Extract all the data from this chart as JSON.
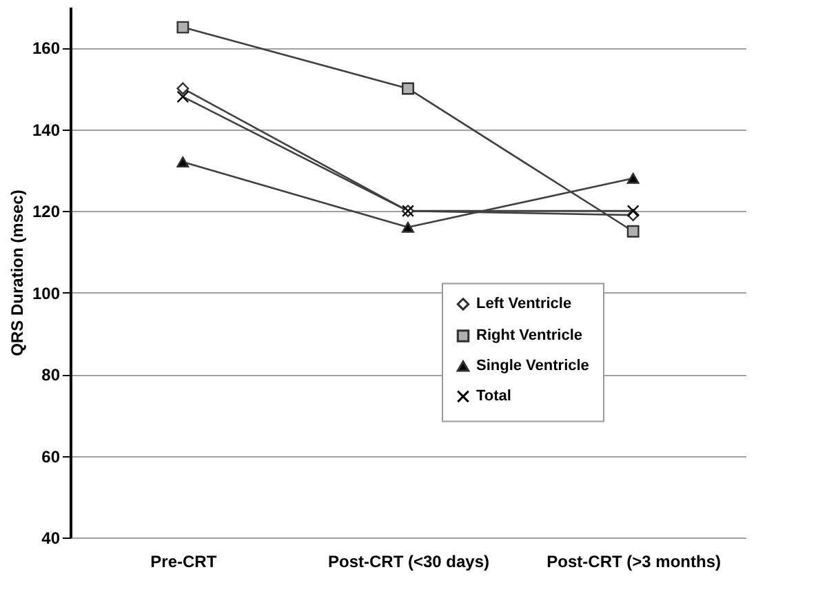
{
  "chart_data": {
    "type": "line",
    "ylabel": "QRS Duration (msec)",
    "categories": [
      "Pre-CRT",
      "Post-CRT (<30 days)",
      "Post-CRT (>3 months)"
    ],
    "series": [
      {
        "name": "Left Ventricle",
        "color": "#ffffff",
        "marker": "diamond",
        "values": [
          150,
          120,
          119
        ]
      },
      {
        "name": "Right Ventricle",
        "color": "#b0b0b0",
        "marker": "square",
        "values": [
          165,
          150,
          115
        ]
      },
      {
        "name": "Single Ventricle",
        "color": "#000000",
        "marker": "triangle",
        "values": [
          132,
          116,
          128
        ]
      },
      {
        "name": "Total",
        "color": "#000000",
        "marker": "cross",
        "values": [
          148,
          120,
          120
        ]
      }
    ],
    "ylim": [
      40,
      170
    ],
    "yticks": [
      40,
      60,
      80,
      100,
      120,
      140,
      160
    ],
    "grid": "y",
    "legend": "right",
    "line_style": "solid"
  }
}
